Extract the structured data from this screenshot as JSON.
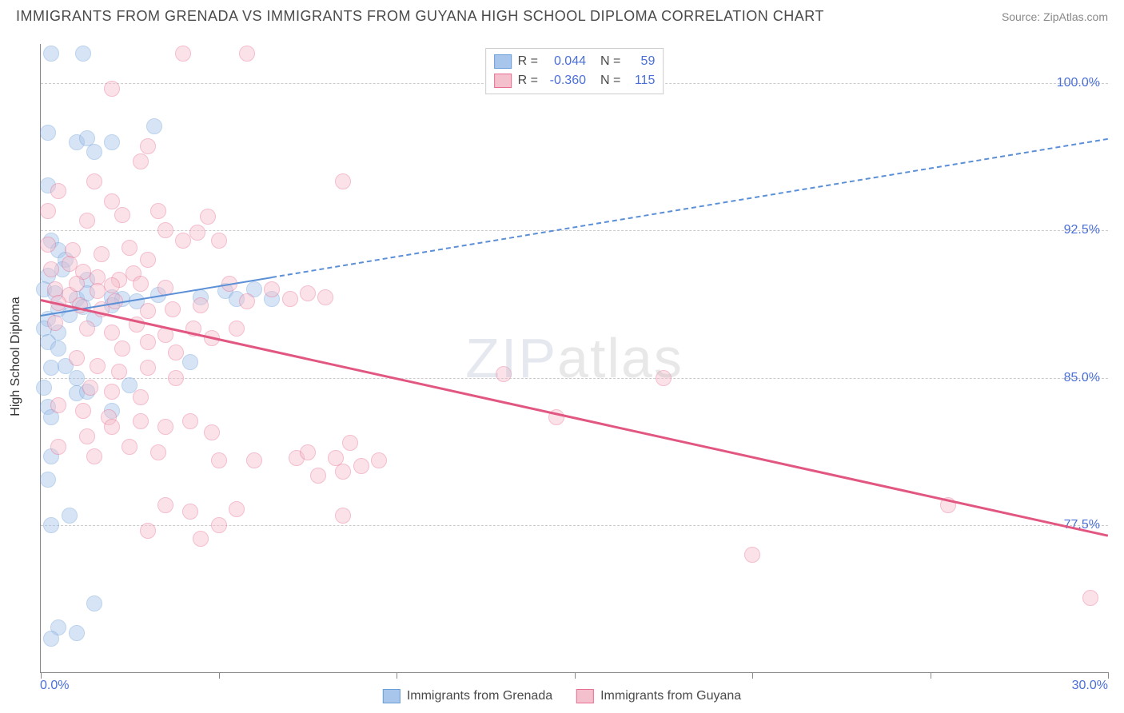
{
  "title": "IMMIGRANTS FROM GRENADA VS IMMIGRANTS FROM GUYANA HIGH SCHOOL DIPLOMA CORRELATION CHART",
  "source": "Source: ZipAtlas.com",
  "watermark_bold": "ZIP",
  "watermark_thin": "atlas",
  "y_axis_title": "High School Diploma",
  "chart": {
    "type": "scatter",
    "xlim": [
      0,
      30
    ],
    "ylim": [
      70,
      102
    ],
    "x_ticks": [
      0,
      5,
      10,
      15,
      20,
      25,
      30
    ],
    "y_ticks": [
      77.5,
      85.0,
      92.5,
      100.0
    ],
    "y_tick_labels": [
      "77.5%",
      "85.0%",
      "92.5%",
      "100.0%"
    ],
    "x_min_label": "0.0%",
    "x_max_label": "30.0%",
    "grid_color": "#cccccc",
    "background_color": "#ffffff",
    "point_radius": 10,
    "point_opacity": 0.45,
    "series": [
      {
        "name": "Immigrants from Grenada",
        "color_fill": "#a8c5eb",
        "color_stroke": "#6b9fd8",
        "R": "0.044",
        "N": "59",
        "trend": {
          "x1": 0,
          "y1": 88.2,
          "x2": 30,
          "y2": 97.2,
          "solid_until_x": 6.5,
          "color": "#5b8fd6",
          "width": 2
        },
        "points": [
          [
            0.3,
            101.5
          ],
          [
            1.2,
            101.5
          ],
          [
            0.2,
            97.5
          ],
          [
            1.0,
            97.0
          ],
          [
            1.3,
            97.2
          ],
          [
            2.0,
            97.0
          ],
          [
            3.2,
            97.8
          ],
          [
            0.2,
            94.8
          ],
          [
            1.5,
            96.5
          ],
          [
            0.3,
            92.0
          ],
          [
            0.5,
            91.5
          ],
          [
            0.7,
            91.0
          ],
          [
            0.2,
            90.2
          ],
          [
            0.6,
            90.5
          ],
          [
            1.3,
            90.0
          ],
          [
            0.1,
            89.5
          ],
          [
            0.4,
            89.3
          ],
          [
            1.0,
            89.0
          ],
          [
            1.3,
            89.3
          ],
          [
            2.0,
            89.1
          ],
          [
            2.3,
            89.0
          ],
          [
            0.5,
            88.5
          ],
          [
            1.2,
            88.6
          ],
          [
            0.2,
            88.0
          ],
          [
            0.8,
            88.2
          ],
          [
            1.5,
            88.0
          ],
          [
            0.1,
            87.5
          ],
          [
            0.5,
            87.3
          ],
          [
            0.2,
            86.8
          ],
          [
            0.5,
            86.5
          ],
          [
            2.0,
            88.7
          ],
          [
            2.7,
            88.9
          ],
          [
            3.3,
            89.2
          ],
          [
            4.5,
            89.1
          ],
          [
            5.2,
            89.4
          ],
          [
            5.5,
            89.0
          ],
          [
            6.0,
            89.5
          ],
          [
            6.5,
            89.0
          ],
          [
            0.3,
            85.5
          ],
          [
            0.7,
            85.6
          ],
          [
            1.0,
            85.0
          ],
          [
            0.1,
            84.5
          ],
          [
            1.0,
            84.2
          ],
          [
            1.3,
            84.3
          ],
          [
            2.5,
            84.6
          ],
          [
            0.2,
            83.5
          ],
          [
            0.3,
            83.0
          ],
          [
            2.0,
            83.3
          ],
          [
            4.2,
            85.8
          ],
          [
            0.3,
            81.0
          ],
          [
            0.2,
            79.8
          ],
          [
            0.8,
            78.0
          ],
          [
            0.3,
            77.5
          ],
          [
            1.5,
            73.5
          ],
          [
            0.5,
            72.3
          ],
          [
            1.0,
            72.0
          ],
          [
            0.3,
            71.7
          ]
        ]
      },
      {
        "name": "Immigrants from Guyana",
        "color_fill": "#f5c0cd",
        "color_stroke": "#e86f91",
        "R": "-0.360",
        "N": "115",
        "trend": {
          "x1": 0,
          "y1": 89.0,
          "x2": 30,
          "y2": 77.0,
          "solid_until_x": 30,
          "color": "#e25782",
          "width": 3
        },
        "points": [
          [
            4.0,
            101.5
          ],
          [
            5.8,
            101.5
          ],
          [
            2.0,
            99.7
          ],
          [
            3.0,
            96.8
          ],
          [
            2.8,
            96.0
          ],
          [
            0.5,
            94.5
          ],
          [
            1.5,
            95.0
          ],
          [
            8.5,
            95.0
          ],
          [
            0.2,
            93.5
          ],
          [
            1.3,
            93.0
          ],
          [
            2.3,
            93.3
          ],
          [
            2.0,
            94.0
          ],
          [
            3.3,
            93.5
          ],
          [
            3.5,
            92.5
          ],
          [
            4.7,
            93.2
          ],
          [
            4.4,
            92.4
          ],
          [
            0.2,
            91.8
          ],
          [
            0.9,
            91.5
          ],
          [
            1.7,
            91.3
          ],
          [
            2.5,
            91.6
          ],
          [
            3.0,
            91.0
          ],
          [
            4.0,
            92.0
          ],
          [
            5.0,
            92.0
          ],
          [
            0.3,
            90.5
          ],
          [
            0.8,
            90.8
          ],
          [
            1.2,
            90.4
          ],
          [
            1.6,
            90.1
          ],
          [
            2.2,
            90.0
          ],
          [
            2.6,
            90.3
          ],
          [
            0.4,
            89.5
          ],
          [
            0.8,
            89.2
          ],
          [
            1.0,
            89.8
          ],
          [
            1.6,
            89.4
          ],
          [
            2.0,
            89.7
          ],
          [
            2.8,
            89.8
          ],
          [
            3.5,
            89.6
          ],
          [
            0.5,
            88.8
          ],
          [
            1.1,
            88.7
          ],
          [
            1.7,
            88.5
          ],
          [
            2.1,
            88.9
          ],
          [
            3.0,
            88.4
          ],
          [
            3.7,
            88.5
          ],
          [
            4.5,
            88.7
          ],
          [
            5.3,
            89.8
          ],
          [
            5.8,
            88.9
          ],
          [
            6.5,
            89.5
          ],
          [
            7.0,
            89.0
          ],
          [
            7.5,
            89.3
          ],
          [
            8.0,
            89.1
          ],
          [
            0.4,
            87.8
          ],
          [
            1.3,
            87.5
          ],
          [
            2.0,
            87.3
          ],
          [
            2.7,
            87.7
          ],
          [
            3.5,
            87.2
          ],
          [
            2.3,
            86.5
          ],
          [
            3.0,
            86.8
          ],
          [
            3.8,
            86.3
          ],
          [
            4.3,
            87.5
          ],
          [
            4.8,
            87.0
          ],
          [
            5.5,
            87.5
          ],
          [
            1.0,
            86.0
          ],
          [
            1.6,
            85.6
          ],
          [
            2.2,
            85.3
          ],
          [
            3.0,
            85.5
          ],
          [
            3.8,
            85.0
          ],
          [
            1.4,
            84.5
          ],
          [
            2.0,
            84.3
          ],
          [
            2.8,
            84.0
          ],
          [
            0.5,
            83.6
          ],
          [
            1.2,
            83.3
          ],
          [
            1.9,
            83.0
          ],
          [
            13.0,
            85.2
          ],
          [
            17.5,
            85.0
          ],
          [
            2.0,
            82.5
          ],
          [
            2.8,
            82.8
          ],
          [
            3.5,
            82.5
          ],
          [
            4.2,
            82.8
          ],
          [
            4.8,
            82.2
          ],
          [
            1.3,
            82.0
          ],
          [
            0.5,
            81.5
          ],
          [
            1.5,
            81.0
          ],
          [
            2.5,
            81.5
          ],
          [
            3.3,
            81.2
          ],
          [
            5.0,
            80.8
          ],
          [
            6.0,
            80.8
          ],
          [
            7.2,
            80.9
          ],
          [
            7.5,
            81.2
          ],
          [
            8.3,
            80.9
          ],
          [
            8.7,
            81.7
          ],
          [
            9.0,
            80.5
          ],
          [
            9.5,
            80.8
          ],
          [
            7.8,
            80.0
          ],
          [
            8.5,
            80.2
          ],
          [
            14.5,
            83.0
          ],
          [
            3.5,
            78.5
          ],
          [
            4.2,
            78.2
          ],
          [
            5.5,
            78.3
          ],
          [
            5.0,
            77.5
          ],
          [
            8.5,
            78.0
          ],
          [
            25.5,
            78.5
          ],
          [
            3.0,
            77.2
          ],
          [
            4.5,
            76.8
          ],
          [
            20.0,
            76.0
          ],
          [
            29.5,
            73.8
          ]
        ]
      }
    ]
  },
  "bottom_legend": [
    {
      "swatch_fill": "#a8c5eb",
      "swatch_stroke": "#6b9fd8",
      "label": "Immigrants from Grenada"
    },
    {
      "swatch_fill": "#f5c0cd",
      "swatch_stroke": "#e86f91",
      "label": "Immigrants from Guyana"
    }
  ]
}
